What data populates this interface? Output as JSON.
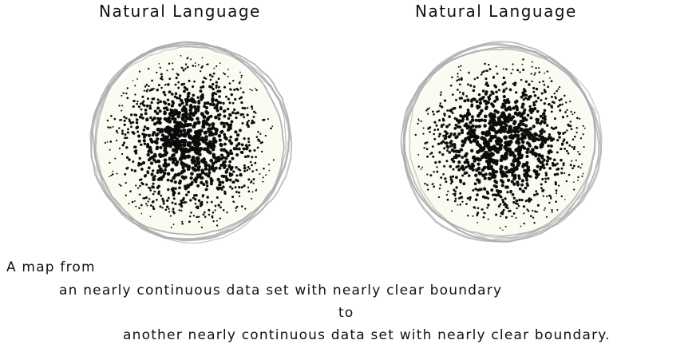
{
  "titles": {
    "left": "Natural Language",
    "right": "Natural Language"
  },
  "caption": {
    "line1": "A map from",
    "line2": "an nearly continuous data set with nearly clear boundary",
    "line3": "to",
    "line4": "another nearly continuous data set with nearly clear boundary."
  },
  "colors": {
    "outline": "#a8a8a8",
    "fill": "#fbfbf1",
    "dots": "#0c0c0c"
  }
}
